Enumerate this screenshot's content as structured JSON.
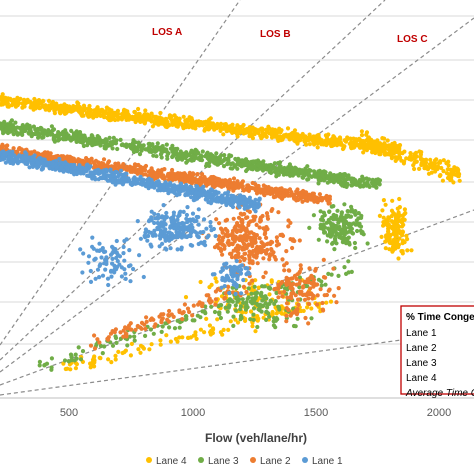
{
  "chart_data": {
    "type": "scatter",
    "xlabel": "Flow (veh/lane/hr)",
    "xlim": [
      350,
      2100
    ],
    "x_ticks": [
      "500",
      "1000",
      "1500",
      "2000"
    ],
    "grid": "horizontal",
    "series": [
      {
        "name": "Lane 4",
        "color": "#ffc000"
      },
      {
        "name": "Lane 3",
        "color": "#70ad47"
      },
      {
        "name": "Lane 2",
        "color": "#ed7d31"
      },
      {
        "name": "Lane 1",
        "color": "#5b9bd5"
      }
    ],
    "los_labels": [
      "LOS A",
      "LOS B",
      "LOS C"
    ],
    "legend": {
      "position": "bottom",
      "items": [
        "Lane 4",
        "Lane 3",
        "Lane 2",
        "Lane 1"
      ]
    },
    "inset_note": {
      "title": "% Time Conges",
      "rows": [
        "Lane 1",
        "Lane 2",
        "Lane 3",
        "Lane 4"
      ],
      "last_row": "Average Time C"
    }
  }
}
